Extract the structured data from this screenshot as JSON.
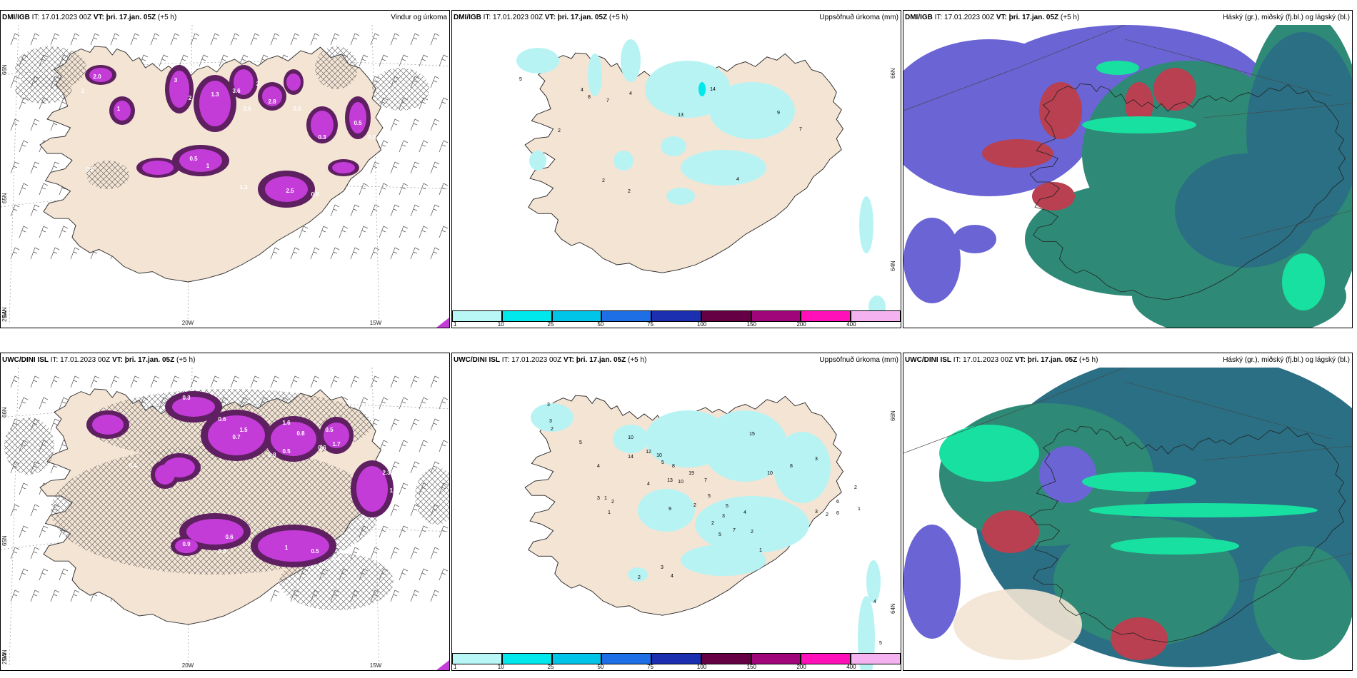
{
  "panels": [
    {
      "id": "p1",
      "model": "DMI/IGB",
      "it": "IT: 17.01.2023 00Z",
      "vt_label": "VT:",
      "vt": "þri. 17.jan. 05Z",
      "lead": "(+5 h)",
      "title": "Vindur og úrkoma",
      "kind": "wind",
      "lat_labels": [
        "66N",
        "65N",
        "64N"
      ],
      "lon_labels": [
        "25W",
        "20W",
        "15W"
      ],
      "values": [
        "2.0",
        "2",
        "1",
        "0.8",
        "3",
        "2",
        "1.3",
        "3.6",
        "2.6",
        "2",
        "2.8",
        "0.5",
        "0.3",
        "0.5",
        "1",
        "1.3",
        "2.5",
        "0.9",
        "0.5",
        "0.8"
      ]
    },
    {
      "id": "p2",
      "model": "DMI/IGB",
      "it": "IT: 17.01.2023 00Z",
      "vt_label": "VT:",
      "vt": "þri. 17.jan. 05Z",
      "lead": "(+5 h)",
      "title": "Uppsöfnuð úrkoma (mm)",
      "kind": "precip",
      "lat_labels": [
        "66N",
        "64N"
      ],
      "values": [
        "5",
        "4",
        "8",
        "7",
        "4",
        "2",
        "2",
        "13",
        "14",
        "9",
        "7",
        "4",
        "2"
      ]
    },
    {
      "id": "p3",
      "model": "DMI/IGB",
      "it": "IT: 17.01.2023 00Z",
      "vt_label": "VT:",
      "vt": "þri. 17.jan. 05Z",
      "lead": "(+5 h)",
      "title": "Háský (gr.), miðský (fj.bl.) og lágský (bl.)",
      "kind": "cloud1",
      "values": []
    },
    {
      "id": "p4",
      "model": "UWC/DINI ISL",
      "it": "IT: 17.01.2023 00Z",
      "vt_label": "VT:",
      "vt": "þri. 17.jan. 05Z",
      "lead": "(+5 h)",
      "title": "",
      "kind": "wind2",
      "lat_labels": [
        "66N",
        "65N",
        "64N"
      ],
      "lon_labels": [
        "25W",
        "20W",
        "15W"
      ],
      "values": [
        "0.3",
        "0.6",
        "1.5",
        "0.7",
        "1.6",
        "0.8",
        "0.5",
        "0.6",
        "1.7",
        "0.8",
        "0.5",
        "2.3",
        "1.4",
        "0.4",
        "0.9",
        "0.6",
        "0.8",
        "1",
        "0.5",
        "0.3"
      ]
    },
    {
      "id": "p5",
      "model": "UWC/DINI ISL",
      "it": "IT: 17.01.2023 00Z",
      "vt_label": "VT:",
      "vt": "þri. 17.jan. 05Z",
      "lead": "(+5 h)",
      "title": "Uppsöfnuð úrkoma (mm)",
      "kind": "precip",
      "lat_labels": [
        "66N",
        "64N"
      ],
      "values": [
        "3",
        "3",
        "2",
        "5",
        "4",
        "3",
        "1",
        "2",
        "1",
        "10",
        "14",
        "12",
        "10",
        "13",
        "8",
        "10",
        "19",
        "5",
        "4",
        "9",
        "7",
        "15",
        "10",
        "8",
        "3",
        "6",
        "6",
        "3",
        "2",
        "2",
        "1",
        "5",
        "5",
        "4",
        "7",
        "3",
        "2",
        "2",
        "2",
        "1",
        "5",
        "2",
        "3",
        "4",
        "5",
        "4",
        "5"
      ]
    },
    {
      "id": "p6",
      "model": "UWC/DINI ISL",
      "it": "IT: 17.01.2023 00Z",
      "vt_label": "VT:",
      "vt": "þri. 17.jan. 05Z",
      "lead": "(+5 h)",
      "title": "Háský (gr.), miðský (fj.bl.) og lágský (bl.)",
      "kind": "cloud2",
      "values": []
    }
  ],
  "legend": {
    "labels": [
      "1",
      "10",
      "25",
      "50",
      "75",
      "100",
      "150",
      "200",
      "400"
    ],
    "colors": [
      "#b9f6f6",
      "#00e8ec",
      "#00c4e8",
      "#1e6fe6",
      "#1b2fb0",
      "#660044",
      "#a0057a",
      "#ff10b8",
      "#f4b2f0"
    ]
  },
  "colors": {
    "land": "#f3e4d4",
    "precip_light": "#b8f3f4",
    "wind_precip": "#c33cd8",
    "wind_precip_dark": "#5e2060",
    "cloud_high": "#6a64d4",
    "cloud_mid_green": "#2e8a76",
    "cloud_teal": "#2b6f84",
    "cloud_low_red": "#b84050",
    "cloud_bright": "#18e0a0"
  }
}
